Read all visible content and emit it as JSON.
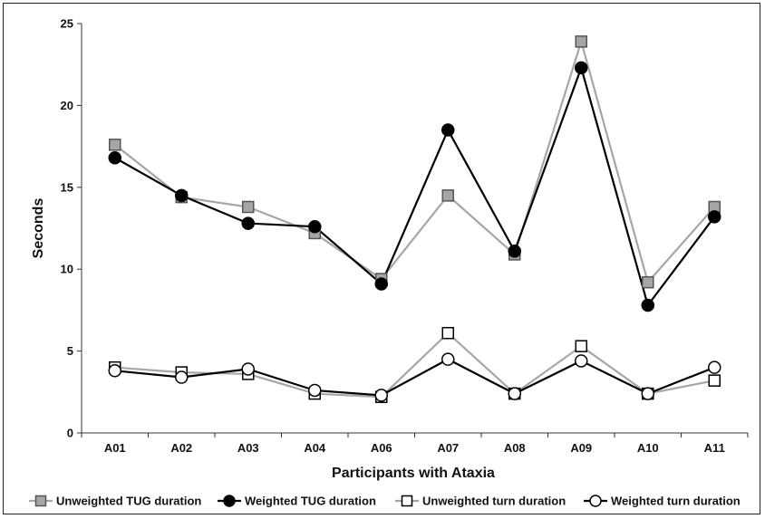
{
  "chart_data": {
    "type": "line",
    "title": "",
    "xlabel": "Participants with Ataxia",
    "ylabel": "Seconds",
    "ylim": [
      0,
      25
    ],
    "yticks": [
      0,
      5,
      10,
      15,
      20,
      25
    ],
    "grid": false,
    "legend_position": "bottom",
    "categories": [
      "A01",
      "A02",
      "A03",
      "A04",
      "A06",
      "A07",
      "A08",
      "A09",
      "A10",
      "A11"
    ],
    "series": [
      {
        "name": "Unweighted TUG duration",
        "values": [
          17.6,
          14.4,
          13.8,
          12.2,
          9.4,
          14.5,
          10.9,
          23.9,
          9.2,
          13.8
        ],
        "line_color": "#a6a6a6",
        "marker": "square",
        "marker_fill": "#a6a6a6",
        "marker_stroke": "#555555"
      },
      {
        "name": "Weighted TUG duration",
        "values": [
          16.8,
          14.5,
          12.8,
          12.6,
          9.1,
          18.5,
          11.1,
          22.3,
          7.8,
          13.2
        ],
        "line_color": "#000000",
        "marker": "circle",
        "marker_fill": "#000000",
        "marker_stroke": "#000000"
      },
      {
        "name": "Unweighted turn duration",
        "values": [
          4.0,
          3.7,
          3.6,
          2.4,
          2.2,
          6.1,
          2.4,
          5.3,
          2.4,
          3.2
        ],
        "line_color": "#a6a6a6",
        "marker": "square",
        "marker_fill": "#ffffff",
        "marker_stroke": "#000000"
      },
      {
        "name": "Weighted turn duration",
        "values": [
          3.8,
          3.4,
          3.9,
          2.6,
          2.3,
          4.5,
          2.4,
          4.4,
          2.4,
          4.0
        ],
        "line_color": "#000000",
        "marker": "circle",
        "marker_fill": "#ffffff",
        "marker_stroke": "#000000"
      }
    ]
  }
}
